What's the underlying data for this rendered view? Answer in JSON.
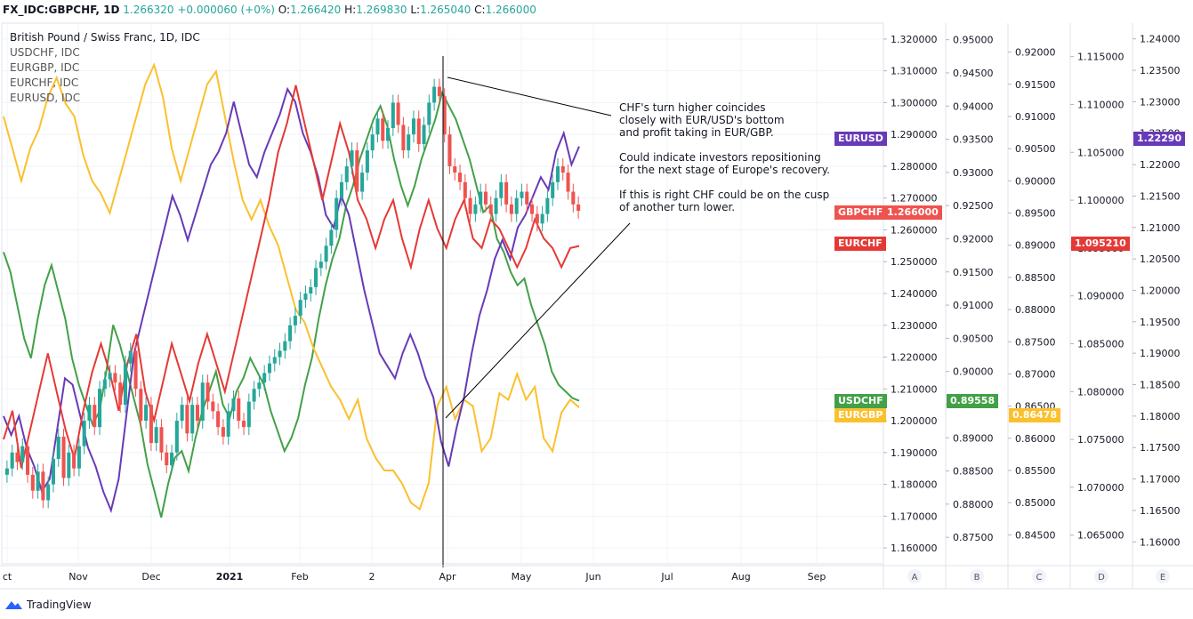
{
  "header": {
    "symbol": "FX_IDC:GBPCHF, 1D",
    "last": "1.266320",
    "change": "+0.000060 (+0%)",
    "o_label": "O:",
    "o": "1.266420",
    "h_label": "H:",
    "h": "1.269830",
    "l_label": "L:",
    "l": "1.265040",
    "c_label": "C:",
    "c": "1.266000"
  },
  "legend": {
    "title": "British Pound / Swiss Franc, 1D, IDC",
    "items": [
      "USDCHF, IDC",
      "EURGBP, IDC",
      "EURCHF, IDC",
      "EURUSD, IDC"
    ]
  },
  "annotation": {
    "p1": [
      "CHF's turn higher coincides",
      "closely with EUR/USD's bottom",
      "and profit taking in EUR/GBP."
    ],
    "p2": [
      "Could indicate investors repositioning",
      "for the next stage of Europe's recovery."
    ],
    "p3": [
      "If this is right CHF could be on the cusp",
      "of another turn lower."
    ]
  },
  "footer": {
    "brand": "TradingView"
  },
  "colors": {
    "gbpchf_up": "#26a69a",
    "gbpchf_down": "#ef5350",
    "usdchf": "#43a047",
    "eurgbp": "#fbc02d",
    "eurchf": "#e53935",
    "eurusd": "#673ab7"
  },
  "tags": {
    "eurusd": "EURUSD",
    "gbpchf": "GBPCHF",
    "gbpchf_val": "1.266000",
    "eurchf": "EURCHF",
    "usdchf": "USDCHF",
    "eurgbp": "EURGBP",
    "b_val": "0.89558",
    "c_val": "0.86478",
    "d_val": "1.095210",
    "e_val": "1.22290"
  },
  "chart_data": {
    "type": "line",
    "title": "British Pound / Swiss Franc, 1D, IDC",
    "x_tick_labels": [
      "ct",
      "Nov",
      "Dec",
      "2021",
      "Feb",
      "2",
      "Apr",
      "May",
      "Jun",
      "Jul",
      "Aug",
      "Sep"
    ],
    "axes": [
      {
        "id": "main",
        "series": "GBPCHF",
        "range": [
          1.155,
          1.325
        ],
        "ticks": [
          "1.320000",
          "1.310000",
          "1.300000",
          "1.290000",
          "1.280000",
          "1.270000",
          "1.260000",
          "1.250000",
          "1.240000",
          "1.230000",
          "1.220000",
          "1.210000",
          "1.200000",
          "1.190000",
          "1.180000",
          "1.170000",
          "1.160000"
        ]
      },
      {
        "id": "A",
        "series": "USDCHF",
        "range": [
          0.871,
          0.9525
        ],
        "ticks": [
          "0.95000",
          "0.94500",
          "0.94000",
          "0.93500",
          "0.93000",
          "0.92500",
          "0.92000",
          "0.91500",
          "0.91000",
          "0.90500",
          "0.90000",
          "0.89500",
          "0.89000",
          "0.88500",
          "0.88000",
          "0.87500"
        ]
      },
      {
        "id": "B",
        "series": "EURGBP",
        "range": [
          0.8405,
          0.9245
        ],
        "ticks": [
          "0.92000",
          "0.91500",
          "0.91000",
          "0.90500",
          "0.90000",
          "0.89500",
          "0.89000",
          "0.88500",
          "0.88000",
          "0.87500",
          "0.87000",
          "0.86500",
          "0.86000",
          "0.85500",
          "0.85000",
          "0.84500"
        ]
      },
      {
        "id": "D",
        "series": "EURCHF",
        "range": [
          1.062,
          1.1185
        ],
        "ticks": [
          "1.115000",
          "1.110000",
          "1.105000",
          "1.100000",
          "1.095000",
          "1.090000",
          "1.085000",
          "1.080000",
          "1.075000",
          "1.070000",
          "1.065000"
        ]
      },
      {
        "id": "E",
        "series": "EURUSD",
        "range": [
          1.1565,
          1.2425
        ],
        "ticks": [
          "1.24000",
          "1.23500",
          "1.23000",
          "1.22500",
          "1.22000",
          "1.21500",
          "1.21000",
          "1.20500",
          "1.20000",
          "1.19500",
          "1.19000",
          "1.18500",
          "1.18000",
          "1.17500",
          "1.17000",
          "1.16500",
          "1.16000"
        ]
      }
    ],
    "axis_letters": [
      "A",
      "B",
      "C",
      "D",
      "E"
    ],
    "series": [
      {
        "name": "GBPCHF",
        "values": [
          1.185,
          1.19,
          1.187,
          1.192,
          1.183,
          1.178,
          1.184,
          1.175,
          1.18,
          1.188,
          1.195,
          1.182,
          1.19,
          1.185,
          1.192,
          1.2,
          1.205,
          1.198,
          1.21,
          1.213,
          1.215,
          1.212,
          1.205,
          1.218,
          1.222,
          1.21,
          1.2,
          1.205,
          1.193,
          1.198,
          1.19,
          1.186,
          1.19,
          1.2,
          1.205,
          1.196,
          1.205,
          1.2,
          1.212,
          1.206,
          1.203,
          1.198,
          1.195,
          1.203,
          1.207,
          1.2,
          1.198,
          1.206,
          1.21,
          1.212,
          1.215,
          1.218,
          1.22,
          1.222,
          1.225,
          1.23,
          1.233,
          1.238,
          1.24,
          1.242,
          1.248,
          1.25,
          1.255,
          1.26,
          1.27,
          1.275,
          1.28,
          1.285,
          1.272,
          1.278,
          1.285,
          1.29,
          1.295,
          1.288,
          1.292,
          1.3,
          1.293,
          1.285,
          1.29,
          1.295,
          1.287,
          1.293,
          1.3,
          1.305,
          1.302,
          1.29,
          1.28,
          1.278,
          1.275,
          1.27,
          1.265,
          1.268,
          1.272,
          1.268,
          1.265,
          1.27,
          1.275,
          1.268,
          1.265,
          1.27,
          1.272,
          1.268,
          1.265,
          1.262,
          1.265,
          1.27,
          1.275,
          1.28,
          1.278,
          1.272,
          1.268,
          1.266
        ]
      },
      {
        "name": "USDCHF",
        "values": [
          0.918,
          0.915,
          0.91,
          0.905,
          0.902,
          0.908,
          0.913,
          0.916,
          0.912,
          0.908,
          0.902,
          0.898,
          0.895,
          0.892,
          0.894,
          0.9,
          0.907,
          0.904,
          0.9,
          0.896,
          0.892,
          0.886,
          0.882,
          0.878,
          0.883,
          0.887,
          0.888,
          0.885,
          0.89,
          0.894,
          0.897,
          0.9,
          0.895,
          0.893,
          0.897,
          0.899,
          0.902,
          0.9,
          0.898,
          0.894,
          0.891,
          0.888,
          0.89,
          0.893,
          0.898,
          0.902,
          0.908,
          0.913,
          0.917,
          0.92,
          0.925,
          0.928,
          0.932,
          0.935,
          0.938,
          0.94,
          0.937,
          0.932,
          0.928,
          0.925,
          0.928,
          0.932,
          0.935,
          0.938,
          0.942,
          0.94,
          0.938,
          0.935,
          0.932,
          0.928,
          0.924,
          0.925,
          0.92,
          0.918,
          0.915,
          0.913,
          0.914,
          0.91,
          0.907,
          0.904,
          0.9,
          0.898,
          0.897,
          0.896,
          0.89558
        ]
      },
      {
        "name": "EURGBP",
        "values": [
          0.91,
          0.905,
          0.9,
          0.905,
          0.908,
          0.913,
          0.916,
          0.912,
          0.91,
          0.904,
          0.9,
          0.898,
          0.895,
          0.9,
          0.905,
          0.91,
          0.915,
          0.918,
          0.913,
          0.905,
          0.9,
          0.905,
          0.91,
          0.915,
          0.917,
          0.91,
          0.903,
          0.897,
          0.894,
          0.897,
          0.893,
          0.89,
          0.885,
          0.88,
          0.878,
          0.874,
          0.871,
          0.868,
          0.866,
          0.863,
          0.866,
          0.86,
          0.857,
          0.855,
          0.855,
          0.853,
          0.85,
          0.849,
          0.853,
          0.865,
          0.868,
          0.863,
          0.866,
          0.865,
          0.858,
          0.86,
          0.867,
          0.866,
          0.87,
          0.866,
          0.868,
          0.86,
          0.858,
          0.864,
          0.866,
          0.86478
        ]
      },
      {
        "name": "EURCHF",
        "values": [
          1.075,
          1.078,
          1.072,
          1.076,
          1.08,
          1.084,
          1.08,
          1.076,
          1.073,
          1.078,
          1.082,
          1.085,
          1.082,
          1.078,
          1.083,
          1.086,
          1.08,
          1.077,
          1.081,
          1.085,
          1.082,
          1.079,
          1.083,
          1.086,
          1.083,
          1.08,
          1.084,
          1.088,
          1.092,
          1.096,
          1.1,
          1.105,
          1.108,
          1.112,
          1.108,
          1.104,
          1.1,
          1.104,
          1.108,
          1.105,
          1.1,
          1.098,
          1.095,
          1.098,
          1.1,
          1.096,
          1.093,
          1.097,
          1.1,
          1.097,
          1.095,
          1.098,
          1.1,
          1.096,
          1.095,
          1.098,
          1.097,
          1.095,
          1.093,
          1.095,
          1.098,
          1.096,
          1.095,
          1.093,
          1.095,
          1.09521
        ]
      },
      {
        "name": "EURUSD",
        "values": [
          1.18,
          1.177,
          1.18,
          1.175,
          1.172,
          1.168,
          1.17,
          1.178,
          1.186,
          1.185,
          1.18,
          1.175,
          1.172,
          1.168,
          1.165,
          1.17,
          1.18,
          1.19,
          1.195,
          1.2,
          1.205,
          1.21,
          1.215,
          1.212,
          1.208,
          1.212,
          1.216,
          1.22,
          1.222,
          1.225,
          1.23,
          1.225,
          1.22,
          1.218,
          1.222,
          1.225,
          1.228,
          1.232,
          1.23,
          1.225,
          1.222,
          1.218,
          1.212,
          1.21,
          1.215,
          1.212,
          1.206,
          1.2,
          1.195,
          1.19,
          1.188,
          1.186,
          1.19,
          1.193,
          1.19,
          1.186,
          1.183,
          1.176,
          1.172,
          1.178,
          1.183,
          1.19,
          1.196,
          1.2,
          1.205,
          1.208,
          1.205,
          1.21,
          1.212,
          1.215,
          1.218,
          1.216,
          1.222,
          1.225,
          1.22,
          1.2229
        ]
      }
    ]
  }
}
